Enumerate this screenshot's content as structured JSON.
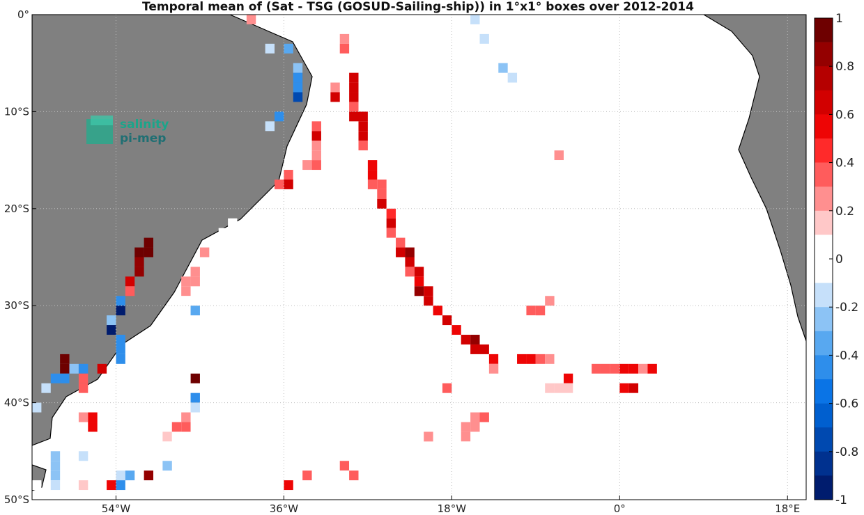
{
  "chart_data": {
    "type": "heatmap",
    "title": "Temporal mean of (Sat - TSG (GOSUD-Sailing-ship)) in 1°x1° boxes over 2012-2014",
    "xlim": [
      -63,
      20
    ],
    "ylim": [
      -50,
      0
    ],
    "x_ticks": [
      {
        "value": -54,
        "label": "54°W"
      },
      {
        "value": -36,
        "label": "36°W"
      },
      {
        "value": -18,
        "label": "18°W"
      },
      {
        "value": 0,
        "label": "0°"
      },
      {
        "value": 18,
        "label": "18°E"
      }
    ],
    "y_ticks": [
      {
        "value": 0,
        "label": "0°"
      },
      {
        "value": -10,
        "label": "10°S"
      },
      {
        "value": -20,
        "label": "20°S"
      },
      {
        "value": -30,
        "label": "30°S"
      },
      {
        "value": -40,
        "label": "40°S"
      },
      {
        "value": -50,
        "label": "50°S"
      }
    ],
    "grid": true,
    "colorbar": {
      "range": [
        -1,
        1
      ],
      "tick_labels": [
        "1",
        "0.8",
        "0.6",
        "0.4",
        "0.2",
        "0",
        "-0.2",
        "-0.4",
        "-0.6",
        "-0.8",
        "-1"
      ],
      "colors": [
        "#6e0000",
        "#940000",
        "#b50000",
        "#d20000",
        "#ee0505",
        "#ff2a2a",
        "#ff5c5c",
        "#ff8f8f",
        "#ffc8c8",
        "#ffffff",
        "#ffffff",
        "#c6e0fa",
        "#8cc3f5",
        "#58a8f0",
        "#2e8eeb",
        "#0a74e6",
        "#005fcf",
        "#0049b0",
        "#00318f",
        "#001c6e"
      ]
    },
    "cells": [
      [
        -39.5,
        -0.5,
        0.3
      ],
      [
        -15.5,
        -0.5,
        -0.1
      ],
      [
        -14.5,
        -2.5,
        -0.1
      ],
      [
        -29.5,
        -2.5,
        0.3
      ],
      [
        -29.5,
        -3.5,
        0.4
      ],
      [
        -37.5,
        -3.5,
        -0.1
      ],
      [
        -35.5,
        -3.5,
        -0.3
      ],
      [
        -34.5,
        -5.5,
        -0.2
      ],
      [
        -12.5,
        -5.5,
        -0.2
      ],
      [
        -11.5,
        -6.5,
        -0.1
      ],
      [
        -34.5,
        -6.5,
        -0.4
      ],
      [
        -28.5,
        -6.5,
        0.7
      ],
      [
        -34.5,
        -7.5,
        -0.4
      ],
      [
        -28.5,
        -7.5,
        0.7
      ],
      [
        -30.5,
        -7.5,
        0.3
      ],
      [
        -34.5,
        -8.5,
        -0.7
      ],
      [
        -28.5,
        -8.5,
        0.7
      ],
      [
        -30.5,
        -8.5,
        0.7
      ],
      [
        -28.5,
        -9.5,
        0.4
      ],
      [
        -36.5,
        -10.5,
        -0.4
      ],
      [
        -28.5,
        -10.5,
        0.7
      ],
      [
        -27.5,
        -10.5,
        0.7
      ],
      [
        -37.5,
        -11.5,
        -0.1
      ],
      [
        -32.5,
        -11.5,
        0.4
      ],
      [
        -27.5,
        -11.5,
        0.7
      ],
      [
        -32.5,
        -12.5,
        0.7
      ],
      [
        -27.5,
        -12.5,
        0.7
      ],
      [
        -32.5,
        -13.5,
        0.3
      ],
      [
        -27.5,
        -13.5,
        0.4
      ],
      [
        -7.5,
        -13.5,
        0.1
      ],
      [
        -32.5,
        -14.5,
        0.3
      ],
      [
        -27.5,
        -14.5,
        0.1
      ],
      [
        -26.5,
        -14.5,
        0.1
      ],
      [
        -6.5,
        -14.5,
        0.3
      ],
      [
        -32.5,
        -15.5,
        0.4
      ],
      [
        -33.5,
        -15.5,
        0.3
      ],
      [
        -26.5,
        -15.5,
        0.6
      ],
      [
        -6.5,
        -15.5,
        0.1
      ],
      [
        -35.5,
        -16.5,
        0.4
      ],
      [
        -34.5,
        -16.5,
        0.1
      ],
      [
        -26.5,
        -16.5,
        0.6
      ],
      [
        -36.5,
        -17.5,
        0.4
      ],
      [
        -35.5,
        -17.5,
        0.7
      ],
      [
        -26.5,
        -17.5,
        0.4
      ],
      [
        -25.5,
        -17.5,
        0.4
      ],
      [
        -6.5,
        -17.5,
        0.1
      ],
      [
        -25.5,
        -18.5,
        0.4
      ],
      [
        -6.5,
        -18.5,
        0.1
      ],
      [
        -25.5,
        -19.5,
        0.7
      ],
      [
        -6.5,
        -19.5,
        0.1
      ],
      [
        -24.5,
        -20.5,
        0.5
      ],
      [
        -6.5,
        -20.5,
        0.1
      ],
      [
        -24.5,
        -21.5,
        0.7
      ],
      [
        -5.5,
        -21.5,
        0.1
      ],
      [
        -41.5,
        -21.5,
        0.1
      ],
      [
        -24.5,
        -22.5,
        0.4
      ],
      [
        -42.5,
        -22.5,
        0.1
      ],
      [
        -43.5,
        -23.5,
        0.1
      ],
      [
        -23.5,
        -23.5,
        0.4
      ],
      [
        -50.5,
        -23.5,
        0.9
      ],
      [
        -44.5,
        -24.5,
        0.3
      ],
      [
        -23.5,
        -24.5,
        0.7
      ],
      [
        -22.5,
        -24.5,
        0.8
      ],
      [
        -51.5,
        -24.5,
        0.9
      ],
      [
        -50.5,
        -24.5,
        0.9
      ],
      [
        -5.5,
        -24.5,
        0.1
      ],
      [
        -6.5,
        -24.5,
        0.1
      ],
      [
        -22.5,
        -25.5,
        0.7
      ],
      [
        -51.5,
        -25.5,
        0.8
      ],
      [
        -6.5,
        -25.5,
        0.1
      ],
      [
        -51.5,
        -26.5,
        0.8
      ],
      [
        -22.5,
        -26.5,
        0.4
      ],
      [
        -21.5,
        -26.5,
        0.7
      ],
      [
        -45.5,
        -26.5,
        0.3
      ],
      [
        -6.5,
        -26.5,
        0.1
      ],
      [
        -52.5,
        -27.5,
        0.7
      ],
      [
        -21.5,
        -27.5,
        0.6
      ],
      [
        -45.5,
        -27.5,
        0.3
      ],
      [
        -46.5,
        -27.5,
        0.3
      ],
      [
        -6.5,
        -27.5,
        0.1
      ],
      [
        -52.5,
        -28.5,
        0.4
      ],
      [
        -21.5,
        -28.5,
        0.8
      ],
      [
        -20.5,
        -28.5,
        0.7
      ],
      [
        -46.5,
        -28.5,
        0.3
      ],
      [
        -6.5,
        -28.5,
        0.1
      ],
      [
        -20.5,
        -29.5,
        0.7
      ],
      [
        -53.5,
        -29.5,
        -0.4
      ],
      [
        -46.5,
        -29.5,
        0.1
      ],
      [
        -7.5,
        -29.5,
        0.3
      ],
      [
        -53.5,
        -30.5,
        -0.9
      ],
      [
        -19.5,
        -30.5,
        0.6
      ],
      [
        -45.5,
        -30.5,
        -0.3
      ],
      [
        -8.5,
        -30.5,
        0.4
      ],
      [
        -9.5,
        -30.5,
        0.4
      ],
      [
        -54.5,
        -31.5,
        -0.2
      ],
      [
        -18.5,
        -31.5,
        0.7
      ],
      [
        -9.5,
        -31.5,
        0.1
      ],
      [
        -54.5,
        -32.5,
        -0.9
      ],
      [
        -17.5,
        -32.5,
        0.6
      ],
      [
        -45.5,
        -32.5,
        0.1
      ],
      [
        -53.5,
        -33.5,
        -0.4
      ],
      [
        -16.5,
        -33.5,
        0.7
      ],
      [
        -15.5,
        -33.5,
        0.8
      ],
      [
        -11.5,
        -33.5,
        0.1
      ],
      [
        -45.5,
        -33.5,
        0.05
      ],
      [
        -53.5,
        -34.5,
        -0.4
      ],
      [
        -15.5,
        -34.5,
        0.7
      ],
      [
        -14.5,
        -34.5,
        0.7
      ],
      [
        -45.5,
        -34.5,
        0.05
      ],
      [
        -65.5,
        -34.5,
        0.4
      ],
      [
        -53.5,
        -35.5,
        -0.4
      ],
      [
        -13.5,
        -35.5,
        0.6
      ],
      [
        -12.5,
        -35.5,
        0.1
      ],
      [
        -59.5,
        -35.5,
        0.9
      ],
      [
        -10.5,
        -35.5,
        0.6
      ],
      [
        -9.5,
        -35.5,
        0.6
      ],
      [
        -8.5,
        -35.5,
        0.4
      ],
      [
        -7.5,
        -35.5,
        0.3
      ],
      [
        -6.5,
        -35.5,
        0.1
      ],
      [
        -5.5,
        -35.5,
        0.1
      ],
      [
        -59.5,
        -36.5,
        0.9
      ],
      [
        -58.5,
        -36.5,
        -0.2
      ],
      [
        -57.5,
        -36.5,
        -0.4
      ],
      [
        -55.5,
        -36.5,
        0.7
      ],
      [
        -13.5,
        -36.5,
        0.3
      ],
      [
        -11.5,
        -36.5,
        0.1
      ],
      [
        -16.5,
        -36.5,
        0.1
      ],
      [
        -3.5,
        -36.5,
        0.1
      ],
      [
        -2.5,
        -36.5,
        0.4
      ],
      [
        -1.5,
        -36.5,
        0.4
      ],
      [
        -0.5,
        -36.5,
        0.4
      ],
      [
        0.5,
        -36.5,
        0.6
      ],
      [
        1.5,
        -36.5,
        0.6
      ],
      [
        2.5,
        -36.5,
        0.3
      ],
      [
        3.5,
        -36.5,
        0.6
      ],
      [
        -60.5,
        -37.5,
        -0.4
      ],
      [
        -59.5,
        -37.5,
        -0.4
      ],
      [
        -45.5,
        -37.5,
        0.9
      ],
      [
        -46.5,
        -37.5,
        0.1
      ],
      [
        -16.5,
        -37.5,
        0.1
      ],
      [
        -11.5,
        -37.5,
        0.1
      ],
      [
        -7.5,
        -37.5,
        0.1
      ],
      [
        -6.5,
        -37.5,
        0.1
      ],
      [
        -5.5,
        -37.5,
        0.6
      ],
      [
        -4.5,
        -37.5,
        0.1
      ],
      [
        -3.5,
        -37.5,
        0.1
      ],
      [
        -57.5,
        -37.5,
        0.4
      ],
      [
        -61.5,
        -38.5,
        -0.1
      ],
      [
        -57.5,
        -38.5,
        0.4
      ],
      [
        -20.5,
        -38.5,
        0.1
      ],
      [
        -19.5,
        -38.5,
        0.1
      ],
      [
        -18.5,
        -38.5,
        0.4
      ],
      [
        -7.5,
        -38.5,
        0.2
      ],
      [
        -6.5,
        -38.5,
        0.2
      ],
      [
        -5.5,
        -38.5,
        0.2
      ],
      [
        -4.5,
        -38.5,
        0.1
      ],
      [
        -0.5,
        -38.5,
        0.1
      ],
      [
        0.5,
        -38.5,
        0.6
      ],
      [
        1.5,
        -38.5,
        0.7
      ],
      [
        -45.5,
        -39.5,
        -0.4
      ],
      [
        -63.5,
        -40.5,
        -0.1
      ],
      [
        -62.5,
        -40.5,
        -0.1
      ],
      [
        -45.5,
        -40.5,
        -0.1
      ],
      [
        -19.5,
        -40.5,
        0.1
      ],
      [
        -64.5,
        -41.5,
        -0.2
      ],
      [
        -57.5,
        -41.5,
        0.3
      ],
      [
        -56.5,
        -41.5,
        0.6
      ],
      [
        -46.5,
        -41.5,
        0.3
      ],
      [
        -15.5,
        -41.5,
        0.3
      ],
      [
        -14.5,
        -41.5,
        0.4
      ],
      [
        -56.5,
        -42.5,
        0.6
      ],
      [
        -46.5,
        -42.5,
        0.4
      ],
      [
        -47.5,
        -42.5,
        0.4
      ],
      [
        -15.5,
        -42.5,
        0.3
      ],
      [
        -16.5,
        -42.5,
        0.3
      ],
      [
        -48.5,
        -43.5,
        0.2
      ],
      [
        -47.5,
        -43.5,
        0.1
      ],
      [
        -20.5,
        -43.5,
        0.3
      ],
      [
        -16.5,
        -43.5,
        0.3
      ],
      [
        -48.5,
        -44.5,
        0.1
      ],
      [
        -47.5,
        -44.5,
        0.1
      ],
      [
        -16.5,
        -44.5,
        0.1
      ],
      [
        -25.5,
        -44.5,
        0.1
      ],
      [
        -24.5,
        -44.5,
        0.1
      ],
      [
        -15.5,
        -44.5,
        0.1
      ],
      [
        -64.5,
        -45.5,
        0.1
      ],
      [
        -60.5,
        -45.5,
        -0.2
      ],
      [
        -57.5,
        -45.5,
        -0.1
      ],
      [
        -48.5,
        -45.5,
        0.1
      ],
      [
        -17.5,
        -45.5,
        0.1
      ],
      [
        -16.5,
        -45.5,
        0.1
      ],
      [
        -22.5,
        -45.5,
        0.1
      ],
      [
        -64.5,
        -46.5,
        0.1
      ],
      [
        -63.5,
        -46.5,
        0.3
      ],
      [
        -60.5,
        -46.5,
        -0.2
      ],
      [
        -48.5,
        -46.5,
        -0.2
      ],
      [
        -31.5,
        -46.5,
        0.1
      ],
      [
        -30.5,
        -46.5,
        0.1
      ],
      [
        -29.5,
        -46.5,
        0.4
      ],
      [
        -28.5,
        -46.5,
        0.1
      ],
      [
        -27.5,
        -46.5,
        0.1
      ],
      [
        -26.5,
        -46.5,
        0.1
      ],
      [
        -22.5,
        -46.5,
        0.1
      ],
      [
        -63.5,
        -47.5,
        0.1
      ],
      [
        -60.5,
        -47.5,
        -0.2
      ],
      [
        -53.5,
        -47.5,
        -0.1
      ],
      [
        -52.5,
        -47.5,
        -0.3
      ],
      [
        -50.5,
        -47.5,
        0.8
      ],
      [
        -33.5,
        -47.5,
        0.4
      ],
      [
        -32.5,
        -47.5,
        0.1
      ],
      [
        -31.5,
        -47.5,
        0.1
      ],
      [
        -29.5,
        -47.5,
        0.1
      ],
      [
        -28.5,
        -47.5,
        0.4
      ],
      [
        -27.5,
        -47.5,
        0.1
      ],
      [
        -64.5,
        -47.5,
        0.1
      ],
      [
        -62.5,
        -48.5,
        0.1
      ],
      [
        -60.5,
        -48.5,
        -0.1
      ],
      [
        -57.5,
        -48.5,
        0.2
      ],
      [
        -54.5,
        -48.5,
        0.6
      ],
      [
        -53.5,
        -48.5,
        -0.4
      ],
      [
        -35.5,
        -48.5,
        0.6
      ],
      [
        -29.5,
        -48.5,
        0.1
      ]
    ],
    "logo": {
      "line1": "salinity",
      "line2": "pi-mep"
    }
  }
}
